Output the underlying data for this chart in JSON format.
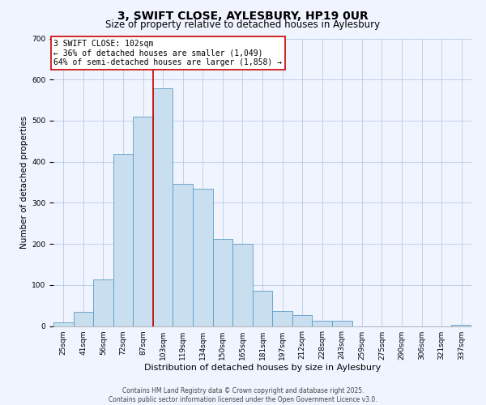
{
  "title": "3, SWIFT CLOSE, AYLESBURY, HP19 0UR",
  "subtitle": "Size of property relative to detached houses in Aylesbury",
  "xlabel": "Distribution of detached houses by size in Aylesbury",
  "ylabel": "Number of detached properties",
  "bar_labels": [
    "25sqm",
    "41sqm",
    "56sqm",
    "72sqm",
    "87sqm",
    "103sqm",
    "119sqm",
    "134sqm",
    "150sqm",
    "165sqm",
    "181sqm",
    "197sqm",
    "212sqm",
    "228sqm",
    "243sqm",
    "259sqm",
    "275sqm",
    "290sqm",
    "306sqm",
    "321sqm",
    "337sqm"
  ],
  "bar_values": [
    8,
    35,
    113,
    420,
    510,
    578,
    347,
    335,
    212,
    201,
    85,
    37,
    27,
    12,
    13,
    0,
    0,
    0,
    0,
    0,
    3
  ],
  "bar_color": "#c9dff0",
  "bar_edge_color": "#5b9cc4",
  "vline_color": "#cc0000",
  "vline_index": 5,
  "annotation_title": "3 SWIFT CLOSE: 102sqm",
  "annotation_line1": "← 36% of detached houses are smaller (1,049)",
  "annotation_line2": "64% of semi-detached houses are larger (1,858) →",
  "annotation_box_color": "#cc0000",
  "ylim": [
    0,
    700
  ],
  "yticks": [
    0,
    100,
    200,
    300,
    400,
    500,
    600,
    700
  ],
  "footer1": "Contains HM Land Registry data © Crown copyright and database right 2025.",
  "footer2": "Contains public sector information licensed under the Open Government Licence v3.0.",
  "bg_color": "#f0f4ff",
  "grid_color": "#b8cce4",
  "title_fontsize": 10,
  "subtitle_fontsize": 8.5,
  "ylabel_fontsize": 7.5,
  "xlabel_fontsize": 8,
  "tick_fontsize": 6.5,
  "ann_fontsize": 7,
  "footer_fontsize": 5.5
}
